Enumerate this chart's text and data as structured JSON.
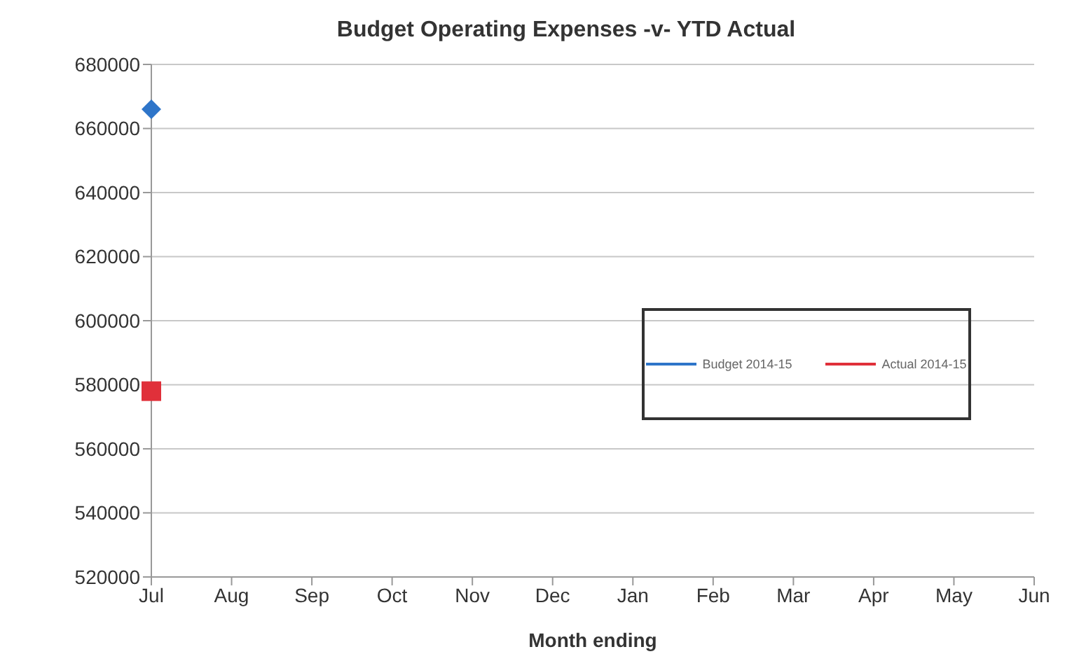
{
  "chart_data": {
    "type": "line",
    "title": "Budget Operating Expenses -v- YTD Actual",
    "xlabel": "Month ending",
    "categories": [
      "Jul",
      "Aug",
      "Sep",
      "Oct",
      "Nov",
      "Dec",
      "Jan",
      "Feb",
      "Mar",
      "Apr",
      "May",
      "Jun"
    ],
    "series": [
      {
        "name": "Budget 2014-15",
        "color": "#2e75c9",
        "marker": "diamond",
        "values": [
          666000,
          null,
          null,
          null,
          null,
          null,
          null,
          null,
          null,
          null,
          null,
          null
        ]
      },
      {
        "name": "Actual 2014-15",
        "color": "#e0303a",
        "marker": "square",
        "values": [
          578000,
          null,
          null,
          null,
          null,
          null,
          null,
          null,
          null,
          null,
          null,
          null
        ]
      }
    ],
    "ylim": [
      520000,
      680000
    ],
    "yticks": [
      520000,
      540000,
      560000,
      580000,
      600000,
      620000,
      640000,
      660000,
      680000
    ],
    "grid": "y",
    "legend": "right"
  }
}
